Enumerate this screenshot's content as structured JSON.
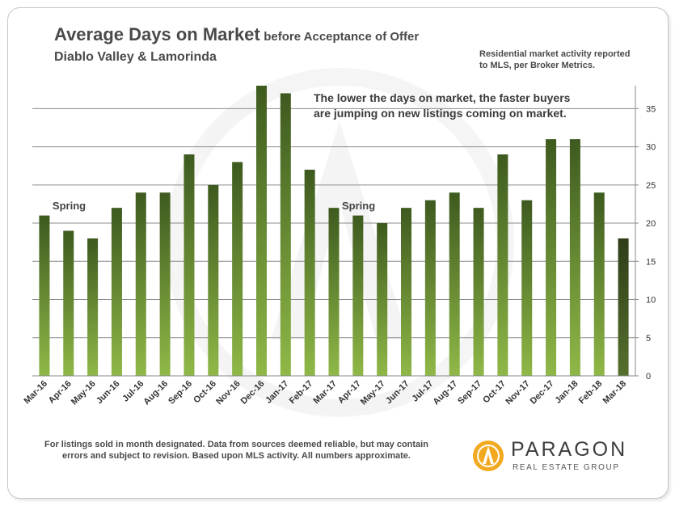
{
  "header": {
    "title_main": "Average Days on Market",
    "title_sub": "before Acceptance of Offer",
    "subtitle": "Diablo Valley & Lamorinda"
  },
  "source_note": {
    "line1": "Residential market activity reported",
    "line2": "to MLS, per Broker Metrics."
  },
  "annotation": {
    "line1": "The lower the days on market, the faster buyers",
    "line2": "are jumping on new listings coming on market."
  },
  "footnote": {
    "line1": "For listings sold in month designated. Data from sources deemed reliable, but may contain",
    "line2": "errors and subject to revision. Based upon MLS activity. All numbers approximate."
  },
  "logo": {
    "name": "PARAGON",
    "tagline": "REAL ESTATE GROUP"
  },
  "colors": {
    "bar_top": "#3e5a1f",
    "bar_bottom": "#8fb847",
    "last_bar_top": "#2e3d18",
    "last_bar_bottom": "#56702e",
    "text": "#4a4a4a",
    "logo_orange": "#f2a91f"
  },
  "chart_data": {
    "type": "bar",
    "categories": [
      "Mar-16",
      "Apr-16",
      "May-16",
      "Jun-16",
      "Jul-16",
      "Aug-16",
      "Sep-16",
      "Oct-16",
      "Nov-16",
      "Dec-16",
      "Jan-17",
      "Feb-17",
      "Mar-17",
      "Apr-17",
      "May-17",
      "Jun-17",
      "Jul-17",
      "Aug-17",
      "Sep-17",
      "Oct-17",
      "Nov-17",
      "Dec-17",
      "Jan-18",
      "Feb-18",
      "Mar-18"
    ],
    "values": [
      21,
      19,
      18,
      22,
      24,
      24,
      29,
      25,
      28,
      38,
      37,
      27,
      22,
      21,
      20,
      22,
      23,
      24,
      22,
      29,
      23,
      31,
      31,
      24,
      18
    ],
    "y_ticks": [
      0,
      5,
      10,
      15,
      20,
      25,
      30,
      35
    ],
    "ylim": [
      0,
      38
    ],
    "y_axis_side": "right",
    "grid": "horizontal",
    "annotations": [
      {
        "text": "Spring",
        "category": "Mar-16"
      },
      {
        "text": "Spring",
        "category": "Mar-17"
      }
    ]
  }
}
